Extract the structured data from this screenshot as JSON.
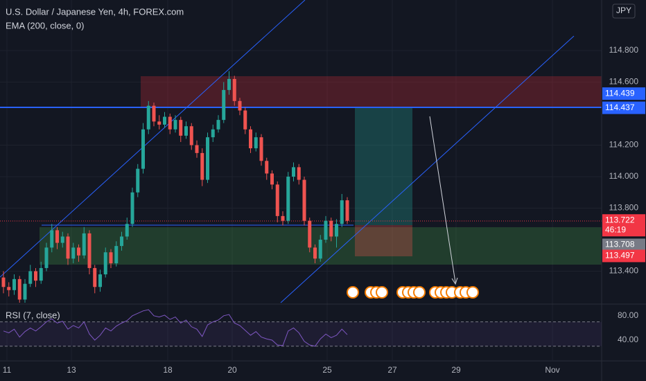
{
  "header": {
    "title": "U.S. Dollar / Japanese Yen, 4h, FOREX.com",
    "indicator": "EMA (200, close, 0)",
    "currency": "JPY"
  },
  "chart_data": [
    {
      "type": "candlestick",
      "open": [
        113.36,
        113.3,
        113.28,
        113.35,
        113.22,
        113.32,
        113.4,
        113.34,
        113.42,
        113.55,
        113.66,
        113.58,
        113.62,
        113.48,
        113.55,
        113.5,
        113.64,
        113.42,
        113.3,
        113.38,
        113.52,
        113.45,
        113.56,
        113.62,
        113.7,
        113.9,
        114.05,
        114.3,
        114.45,
        114.35,
        114.33,
        114.38,
        114.3,
        114.36,
        114.26,
        114.32,
        114.2,
        114.15,
        113.98,
        114.25,
        114.3,
        114.36,
        114.55,
        114.62,
        114.48,
        114.42,
        114.3,
        114.18,
        114.25,
        114.1,
        114.02,
        113.95,
        113.75,
        113.72,
        114.0,
        114.06,
        113.98,
        113.72,
        113.55,
        113.48,
        113.6,
        113.72,
        113.62,
        113.7,
        113.85
      ],
      "high": [
        113.4,
        113.33,
        113.38,
        113.37,
        113.35,
        113.44,
        113.42,
        113.46,
        113.58,
        113.7,
        113.68,
        113.65,
        113.64,
        113.58,
        113.57,
        113.68,
        113.66,
        113.44,
        113.41,
        113.55,
        113.54,
        113.59,
        113.65,
        113.74,
        113.93,
        114.08,
        114.34,
        114.48,
        114.47,
        114.39,
        114.41,
        114.4,
        114.39,
        114.38,
        114.35,
        114.34,
        114.23,
        114.18,
        114.28,
        114.33,
        114.39,
        114.6,
        114.67,
        114.64,
        114.5,
        114.44,
        114.32,
        114.28,
        114.27,
        114.12,
        114.04,
        113.97,
        113.78,
        114.03,
        114.09,
        114.08,
        114.0,
        113.74,
        113.57,
        113.63,
        113.75,
        113.74,
        113.73,
        113.89,
        113.87
      ],
      "low": [
        113.26,
        113.24,
        113.25,
        113.2,
        113.2,
        113.3,
        113.3,
        113.32,
        113.4,
        113.52,
        113.54,
        113.55,
        113.44,
        113.45,
        113.46,
        113.48,
        113.38,
        113.26,
        113.27,
        113.36,
        113.42,
        113.43,
        113.53,
        113.6,
        113.68,
        113.87,
        114.02,
        114.27,
        114.32,
        114.3,
        114.31,
        114.27,
        114.28,
        114.22,
        114.24,
        114.17,
        114.12,
        113.94,
        113.96,
        114.22,
        114.28,
        114.34,
        114.52,
        114.45,
        114.39,
        114.27,
        114.15,
        114.16,
        114.07,
        113.98,
        113.92,
        113.71,
        113.69,
        113.7,
        113.97,
        113.95,
        113.69,
        113.52,
        113.45,
        113.46,
        113.58,
        113.59,
        113.55,
        113.68,
        113.7
      ],
      "close": [
        113.3,
        113.28,
        113.35,
        113.22,
        113.32,
        113.4,
        113.34,
        113.42,
        113.55,
        113.66,
        113.58,
        113.62,
        113.48,
        113.55,
        113.5,
        113.64,
        113.42,
        113.3,
        113.38,
        113.52,
        113.45,
        113.56,
        113.62,
        113.7,
        113.9,
        114.05,
        114.3,
        114.45,
        114.35,
        114.33,
        114.38,
        114.3,
        114.36,
        114.26,
        114.32,
        114.2,
        114.15,
        113.98,
        114.25,
        114.3,
        114.36,
        114.55,
        114.62,
        114.48,
        114.42,
        114.3,
        114.18,
        114.25,
        114.1,
        114.02,
        113.95,
        113.75,
        113.72,
        114.0,
        114.06,
        113.98,
        113.72,
        113.55,
        113.48,
        113.6,
        113.72,
        113.62,
        113.7,
        113.85,
        113.72
      ],
      "up_color": "#26a69a",
      "down_color": "#ef5350",
      "ylim": [
        113.2,
        115.121
      ],
      "yticks": [
        {
          "value": 114.8,
          "label": "114.800"
        },
        {
          "value": 114.6,
          "label": "114.600"
        },
        {
          "value": 114.2,
          "label": "114.200"
        },
        {
          "value": 114.0,
          "label": "114.000"
        },
        {
          "value": 113.8,
          "label": "113.800"
        },
        {
          "value": 113.4,
          "label": "113.400"
        }
      ],
      "xtick_labels": [
        "11",
        "13",
        "18",
        "20",
        "25",
        "27",
        "29",
        "Nov"
      ],
      "price_markers": [
        {
          "value": 114.439,
          "color": "#2962ff"
        },
        {
          "value": 114.437,
          "color": "#2962ff"
        },
        {
          "value": 113.722,
          "color": "#f23645",
          "countdown": "46:19"
        },
        {
          "value": 113.708,
          "color": "#787b86"
        },
        {
          "value": 113.497,
          "color": "#f23645"
        }
      ],
      "grid": true
    },
    {
      "type": "line",
      "title": "RSI (7, close)",
      "values": [
        55,
        52,
        58,
        45,
        54,
        60,
        55,
        62,
        70,
        75,
        68,
        71,
        58,
        64,
        60,
        70,
        50,
        40,
        48,
        60,
        55,
        63,
        68,
        72,
        80,
        84,
        88,
        90,
        80,
        78,
        81,
        74,
        78,
        68,
        73,
        62,
        58,
        46,
        65,
        70,
        73,
        80,
        82,
        68,
        64,
        56,
        48,
        54,
        45,
        42,
        40,
        32,
        31,
        55,
        60,
        52,
        38,
        32,
        30,
        42,
        50,
        44,
        48,
        58,
        49
      ],
      "color": "#7e57c2",
      "ylim": [
        7,
        98
      ],
      "yticks": [
        {
          "value": 80,
          "label": "80.00"
        },
        {
          "value": 40,
          "label": "40.00"
        }
      ],
      "bands": [
        30,
        70
      ]
    }
  ]
}
